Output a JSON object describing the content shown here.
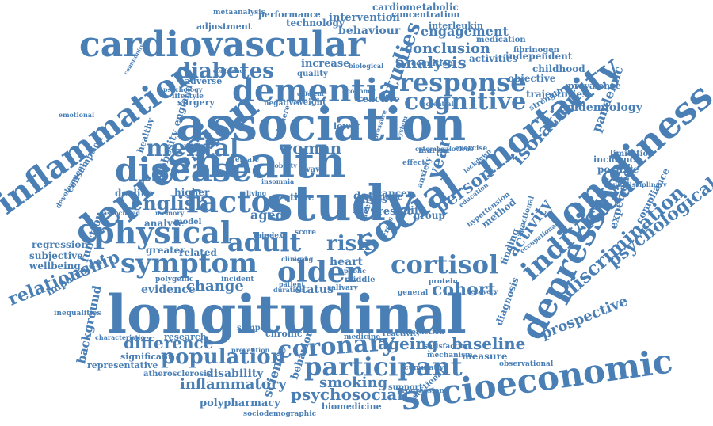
{
  "color": "#4a7fb5",
  "words": [
    {
      "text": "longitudinal"
    },
    {
      "text": "association"
    },
    {
      "text": "study"
    },
    {
      "text": "health"
    },
    {
      "text": "socioeconomic"
    },
    {
      "text": "cardiovascular"
    },
    {
      "text": "depression"
    },
    {
      "text": "social"
    },
    {
      "text": "disease"
    },
    {
      "text": "dementia"
    },
    {
      "text": "loneliness"
    },
    {
      "text": "inflammation"
    },
    {
      "text": "mortality"
    },
    {
      "text": "depressive"
    },
    {
      "text": "physical"
    },
    {
      "text": "factor"
    },
    {
      "text": "cortisol"
    },
    {
      "text": "symptom"
    },
    {
      "text": "older"
    },
    {
      "text": "participant"
    },
    {
      "text": "adult"
    },
    {
      "text": "response"
    },
    {
      "text": "mental"
    },
    {
      "text": "cognitive"
    },
    {
      "text": "coronary"
    },
    {
      "text": "diabetes"
    },
    {
      "text": "individual"
    },
    {
      "text": "discrimination"
    },
    {
      "text": "psychological"
    },
    {
      "text": "population"
    },
    {
      "text": "relationship"
    },
    {
      "text": "difference"
    },
    {
      "text": "english"
    },
    {
      "text": "risk"
    },
    {
      "text": "studies"
    },
    {
      "text": "cohort"
    },
    {
      "text": "woman"
    },
    {
      "text": "ageing"
    },
    {
      "text": "baseline"
    },
    {
      "text": "isolation"
    },
    {
      "text": "activity"
    },
    {
      "text": "psychosocial"
    },
    {
      "text": "smoking"
    },
    {
      "text": "inflammatory"
    },
    {
      "text": "prospective"
    },
    {
      "text": "conclusion"
    },
    {
      "text": "analysis"
    },
    {
      "text": "engagement"
    },
    {
      "text": "behaviour"
    },
    {
      "text": "intervention"
    },
    {
      "text": "technology"
    },
    {
      "text": "performance"
    },
    {
      "text": "cardiometabolic"
    },
    {
      "text": "person"
    },
    {
      "text": "year"
    },
    {
      "text": "polypharmacy"
    },
    {
      "text": "disability"
    },
    {
      "text": "science"
    },
    {
      "text": "behavior"
    },
    {
      "text": "background"
    },
    {
      "text": "impairment"
    },
    {
      "text": "epidemiology"
    },
    {
      "text": "pandemic"
    },
    {
      "text": "experience"
    },
    {
      "text": "change"
    },
    {
      "text": "evidence"
    },
    {
      "text": "status"
    },
    {
      "text": "heart"
    },
    {
      "text": "aged"
    },
    {
      "text": "related"
    },
    {
      "text": "greater"
    },
    {
      "text": "analyse"
    },
    {
      "text": "decline"
    },
    {
      "text": "higher"
    },
    {
      "text": "method"
    },
    {
      "text": "regression"
    },
    {
      "text": "subjective"
    },
    {
      "text": "wellbeing"
    },
    {
      "text": "function"
    },
    {
      "text": "development"
    },
    {
      "text": "consumption"
    },
    {
      "text": "obesity"
    },
    {
      "text": "england"
    },
    {
      "text": "healthy"
    },
    {
      "text": "surgery"
    },
    {
      "text": "adverse"
    },
    {
      "text": "lifestyle"
    },
    {
      "text": "psychology"
    },
    {
      "text": "increase"
    },
    {
      "text": "quality"
    },
    {
      "text": "emotional"
    },
    {
      "text": "data"
    },
    {
      "text": "more"
    },
    {
      "text": "result"
    },
    {
      "text": "level"
    },
    {
      "text": "time"
    },
    {
      "text": "cancer"
    },
    {
      "text": "life"
    },
    {
      "text": "group"
    },
    {
      "text": "model"
    },
    {
      "text": "measure"
    },
    {
      "text": "diagnosis"
    },
    {
      "text": "finding"
    },
    {
      "text": "compliance"
    },
    {
      "text": "positive"
    },
    {
      "text": "incidence"
    },
    {
      "text": "limitation"
    },
    {
      "text": "multidisciplinary"
    },
    {
      "text": "strength"
    },
    {
      "text": "trajectories"
    },
    {
      "text": "prevalence"
    },
    {
      "text": "objective"
    },
    {
      "text": "childhood"
    },
    {
      "text": "independent"
    },
    {
      "text": "fibrinogen"
    },
    {
      "text": "medication"
    },
    {
      "text": "activities"
    },
    {
      "text": "interleukin"
    },
    {
      "text": "concentration"
    },
    {
      "text": "metaanalysis"
    },
    {
      "text": "adjustment"
    },
    {
      "text": "research"
    },
    {
      "text": "sample"
    },
    {
      "text": "chronic"
    },
    {
      "text": "significant"
    },
    {
      "text": "representative"
    },
    {
      "text": "atherosclerosis"
    },
    {
      "text": "sociodemographic"
    },
    {
      "text": "biomedicine"
    },
    {
      "text": "support"
    },
    {
      "text": "sectional"
    },
    {
      "text": "observational"
    },
    {
      "text": "mechanism"
    },
    {
      "text": "satisfaction"
    },
    {
      "text": "general"
    },
    {
      "text": "protein"
    },
    {
      "text": "recovery"
    },
    {
      "text": "incident"
    },
    {
      "text": "polygenic"
    },
    {
      "text": "memory"
    },
    {
      "text": "associated"
    },
    {
      "text": "weight"
    },
    {
      "text": "negative"
    },
    {
      "text": "examine"
    },
    {
      "text": "female"
    },
    {
      "text": "mobility"
    },
    {
      "text": "living"
    },
    {
      "text": "score"
    },
    {
      "text": "cause"
    },
    {
      "text": "exercise"
    },
    {
      "text": "lockdown"
    },
    {
      "text": "cognition"
    },
    {
      "text": "potential"
    },
    {
      "text": "reactive"
    },
    {
      "text": "middle"
    },
    {
      "text": "salivary"
    },
    {
      "text": "public"
    },
    {
      "text": "prevention"
    },
    {
      "text": "inequalities"
    },
    {
      "text": "characteristic"
    },
    {
      "text": "stress"
    },
    {
      "text": "sleep"
    },
    {
      "text": "wave"
    },
    {
      "text": "lower"
    },
    {
      "text": "effect"
    },
    {
      "text": "anxiety"
    },
    {
      "text": "marker"
    },
    {
      "text": "hypertension"
    },
    {
      "text": "education"
    },
    {
      "text": "functional"
    },
    {
      "text": "occupational"
    },
    {
      "text": "duration"
    },
    {
      "text": "clinical"
    },
    {
      "text": "index"
    },
    {
      "text": "aging"
    },
    {
      "text": "patient"
    },
    {
      "text": "cross"
    },
    {
      "text": "biological"
    },
    {
      "text": "economic"
    },
    {
      "text": "medicine"
    },
    {
      "text": "reactivity"
    },
    {
      "text": "interaction"
    },
    {
      "text": "progression"
    },
    {
      "text": "cumulative"
    },
    {
      "text": "different"
    },
    {
      "text": "confidence"
    },
    {
      "text": "community"
    },
    {
      "text": "cytomegalovirus"
    },
    {
      "text": "telomere"
    },
    {
      "text": "pressure"
    },
    {
      "text": "system"
    },
    {
      "text": "insomnia"
    },
    {
      "text": "stroke"
    }
  ]
}
